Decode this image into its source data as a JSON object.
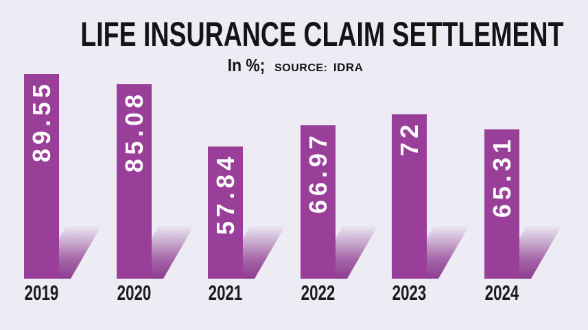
{
  "page": {
    "background_color": "#EDEBF4"
  },
  "header": {
    "title": "LIFE INSURANCE CLAIM SETTLEMENT",
    "unit_label": "In %;",
    "source_label": "SOURCE:",
    "source_value": "IDRA"
  },
  "chart_data": {
    "type": "bar",
    "title": "LIFE INSURANCE CLAIM SETTLEMENT",
    "subtitle": "In %; SOURCE: IDRA",
    "unit": "%",
    "categories": [
      "2019",
      "2020",
      "2021",
      "2022",
      "2023",
      "2024"
    ],
    "values": [
      89.55,
      85.08,
      57.84,
      66.97,
      72,
      65.31
    ],
    "value_labels": [
      "89.55",
      "85.08",
      "57.84",
      "66.97",
      "72",
      "65.31"
    ],
    "ylim": [
      0,
      100
    ],
    "grid": false,
    "legend_position": "none",
    "value_label_position": "inside-top-rotated",
    "bar_color": "#993E99",
    "bar_shadow_color": "#8E3C90",
    "value_text_color": "#FFFFFF",
    "axis_label_color": "#1A1A1A",
    "title_color": "#141414"
  }
}
